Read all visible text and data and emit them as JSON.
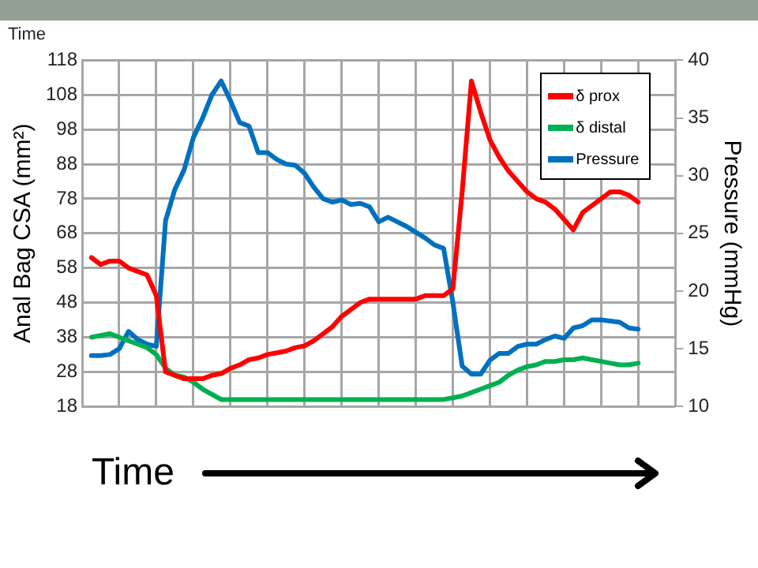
{
  "chart_data": {
    "type": "line",
    "annotations": [
      "Time"
    ],
    "xlabel": "Time",
    "ylabel": "Anal Bag CSA (mm²)",
    "y2label": "Pressure (mmHg)",
    "categories": [
      null,
      null,
      null,
      null,
      null,
      null,
      null,
      null,
      null,
      null,
      null,
      null,
      null,
      null,
      null,
      null,
      null,
      null,
      null,
      null,
      null,
      null,
      null,
      null,
      null,
      null,
      null,
      null,
      null,
      null,
      null,
      null,
      null,
      null,
      null,
      null,
      null,
      null,
      null,
      null,
      null,
      null,
      null,
      null,
      null,
      null,
      null,
      null,
      null,
      null,
      null,
      null,
      null,
      null,
      null,
      null,
      null,
      null,
      null,
      null,
      null,
      null,
      null,
      null,
      null
    ],
    "ylim": [
      18,
      118
    ],
    "yticks": [
      18,
      28,
      38,
      48,
      58,
      68,
      78,
      88,
      98,
      108,
      118
    ],
    "y2lim": [
      10,
      40
    ],
    "y2ticks": [
      10,
      15,
      20,
      25,
      30,
      35,
      40
    ],
    "grid": true,
    "legend": "top right",
    "series": [
      {
        "name": "δ prox",
        "color": "#ff0000",
        "values": [
          null,
          61,
          59,
          60,
          60,
          58,
          57,
          56,
          50,
          28,
          27,
          26,
          26,
          26,
          27,
          27.5,
          29,
          30,
          31.5,
          32,
          33,
          33.5,
          34,
          35,
          35.5,
          37,
          39,
          41,
          44,
          46,
          48,
          49,
          49,
          49,
          49,
          49,
          49,
          50,
          50,
          50,
          52,
          80,
          112,
          103,
          95,
          90,
          86,
          83,
          80,
          78,
          77,
          75,
          72,
          69,
          74,
          76,
          78,
          80,
          80,
          79,
          77,
          null,
          null,
          null,
          null
        ]
      },
      {
        "name": "δ distal",
        "color": "#00b050",
        "values": [
          null,
          38,
          38.5,
          39,
          38,
          37,
          36,
          35,
          33,
          29,
          27,
          26.5,
          25,
          23,
          21.5,
          20,
          20,
          20,
          20,
          20,
          20,
          20,
          20,
          20,
          20,
          20,
          20,
          20,
          20,
          20,
          20,
          20,
          20,
          20,
          20,
          20,
          20,
          20,
          20,
          20,
          20.5,
          21,
          22,
          23,
          24,
          25,
          27,
          28.5,
          29.5,
          30,
          31,
          31,
          31.5,
          31.5,
          32,
          31.5,
          31,
          30.5,
          30,
          30,
          30.5,
          null,
          null,
          null,
          null
        ]
      },
      {
        "name": "Pressure",
        "color": "#0070c0",
        "axis": "y2",
        "values": [
          null,
          14.4,
          14.4,
          14.5,
          15,
          16.5,
          15.8,
          15.4,
          15.2,
          26.1,
          28.8,
          30.5,
          33.3,
          35,
          37,
          38.2,
          36.5,
          34.6,
          34.3,
          32,
          32,
          31.4,
          31,
          30.9,
          30.2,
          29,
          28,
          27.7,
          27.9,
          27.5,
          27.6,
          27.3,
          26,
          26.4,
          26,
          25.6,
          25.1,
          24.6,
          24,
          23.7,
          19,
          13.5,
          12.8,
          12.8,
          14,
          14.6,
          14.6,
          15.2,
          15.4,
          15.4,
          15.8,
          16.1,
          15.9,
          16.8,
          17,
          17.5,
          17.5,
          17.4,
          17.3,
          16.8,
          16.7,
          null,
          null,
          null,
          null
        ]
      }
    ]
  }
}
